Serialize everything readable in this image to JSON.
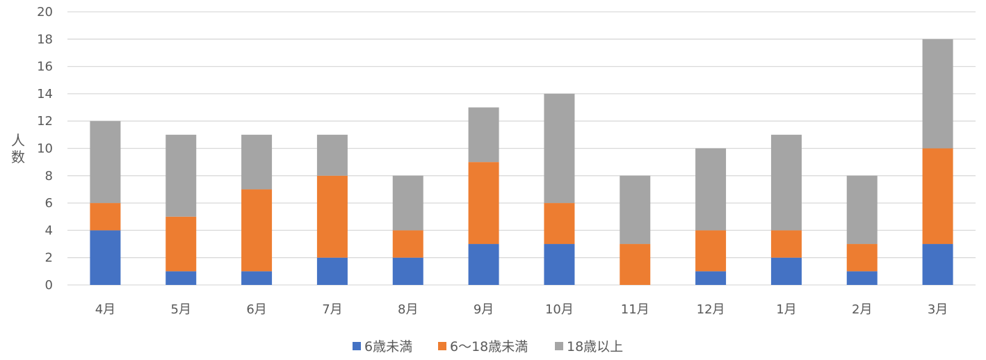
{
  "chart_data": {
    "type": "bar",
    "stacked": true,
    "categories": [
      "4月",
      "5月",
      "6月",
      "7月",
      "8月",
      "9月",
      "10月",
      "11月",
      "12月",
      "1月",
      "2月",
      "3月"
    ],
    "series": [
      {
        "name": "6歳未満",
        "color": "#4472c4",
        "values": [
          4,
          1,
          1,
          2,
          2,
          3,
          3,
          0,
          1,
          2,
          1,
          3
        ]
      },
      {
        "name": "6〜18歳未満",
        "color": "#ed7d31",
        "values": [
          2,
          4,
          6,
          6,
          2,
          6,
          3,
          3,
          3,
          2,
          2,
          7
        ]
      },
      {
        "name": "18歳以上",
        "color": "#a5a5a5",
        "values": [
          6,
          6,
          4,
          3,
          4,
          4,
          8,
          5,
          6,
          7,
          5,
          8
        ]
      }
    ],
    "title": "",
    "xlabel": "",
    "ylabel": "人数",
    "ylim": [
      0,
      20
    ],
    "yticks": [
      0,
      2,
      4,
      6,
      8,
      10,
      12,
      14,
      16,
      18,
      20
    ],
    "grid": true,
    "legend": "bottom-center"
  }
}
